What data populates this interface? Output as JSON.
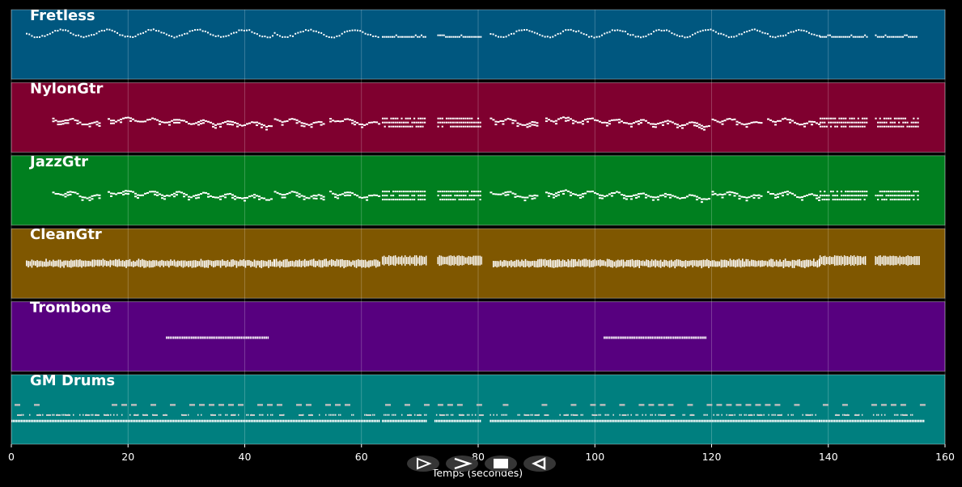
{
  "player": {
    "controls": [
      {
        "name": "play",
        "icon": "play-outline-icon"
      },
      {
        "name": "fast-forward",
        "icon": "chevron-right-icon"
      },
      {
        "name": "stop",
        "icon": "stop-square-icon"
      },
      {
        "name": "rewind",
        "icon": "rewind-outline-icon"
      }
    ]
  },
  "chart_data": {
    "type": "piano-roll",
    "xlabel": "Temps (secondes)",
    "xlim": [
      0,
      160
    ],
    "xticks": [
      0,
      20,
      40,
      60,
      80,
      100,
      120,
      140,
      160
    ],
    "grid": true,
    "tracks": [
      {
        "name": "Fretless",
        "color": "#00577f",
        "phrases": [
          {
            "start": 2.5,
            "end": 45,
            "style": "wave",
            "level": 0.33,
            "amp": 0.05
          },
          {
            "start": 45,
            "end": 63,
            "style": "wave",
            "level": 0.33,
            "amp": 0.05
          },
          {
            "start": 63.5,
            "end": 71,
            "style": "flat",
            "level": 0.38
          },
          {
            "start": 73,
            "end": 80.5,
            "style": "flat",
            "level": 0.38
          },
          {
            "start": 82,
            "end": 138.5,
            "style": "wave",
            "level": 0.33,
            "amp": 0.05
          },
          {
            "start": 138.5,
            "end": 146.5,
            "style": "flat",
            "level": 0.38
          },
          {
            "start": 148,
            "end": 155,
            "style": "flat",
            "level": 0.38
          }
        ]
      },
      {
        "name": "NylonGtr",
        "color": "#7f002f",
        "phrases": [
          {
            "start": 7,
            "end": 15,
            "style": "melody",
            "level": 0.58
          },
          {
            "start": 16.5,
            "end": 44.5,
            "style": "melody",
            "level": 0.58
          },
          {
            "start": 45,
            "end": 53.5,
            "style": "melody",
            "level": 0.58
          },
          {
            "start": 54.5,
            "end": 63,
            "style": "melody",
            "level": 0.58
          },
          {
            "start": 63.5,
            "end": 71,
            "style": "chord",
            "level": 0.55
          },
          {
            "start": 73,
            "end": 80.5,
            "style": "chord",
            "level": 0.55
          },
          {
            "start": 82,
            "end": 90,
            "style": "melody",
            "level": 0.58
          },
          {
            "start": 91.5,
            "end": 119.5,
            "style": "melody",
            "level": 0.58
          },
          {
            "start": 120,
            "end": 128.5,
            "style": "melody",
            "level": 0.58
          },
          {
            "start": 129.5,
            "end": 138.5,
            "style": "melody",
            "level": 0.58
          },
          {
            "start": 138.5,
            "end": 146.5,
            "style": "chord",
            "level": 0.55
          },
          {
            "start": 148,
            "end": 155.5,
            "style": "chord",
            "level": 0.55
          }
        ]
      },
      {
        "name": "JazzGtr",
        "color": "#007f1f",
        "phrases": [
          {
            "start": 7,
            "end": 15,
            "style": "melody",
            "level": 0.58
          },
          {
            "start": 16.5,
            "end": 44.5,
            "style": "melody",
            "level": 0.58
          },
          {
            "start": 45,
            "end": 53.5,
            "style": "melody",
            "level": 0.58
          },
          {
            "start": 54.5,
            "end": 63,
            "style": "melody",
            "level": 0.58
          },
          {
            "start": 63.5,
            "end": 71,
            "style": "chord",
            "level": 0.55
          },
          {
            "start": 73,
            "end": 80.5,
            "style": "chord",
            "level": 0.55
          },
          {
            "start": 82,
            "end": 90,
            "style": "melody",
            "level": 0.58
          },
          {
            "start": 91.5,
            "end": 119.5,
            "style": "melody",
            "level": 0.58
          },
          {
            "start": 120,
            "end": 128.5,
            "style": "melody",
            "level": 0.58
          },
          {
            "start": 129.5,
            "end": 138.5,
            "style": "melody",
            "level": 0.58
          },
          {
            "start": 138.5,
            "end": 146.5,
            "style": "chord",
            "level": 0.55
          },
          {
            "start": 148,
            "end": 155.5,
            "style": "chord",
            "level": 0.55
          }
        ]
      },
      {
        "name": "CleanGtr",
        "color": "#7f5700",
        "phrases": [
          {
            "start": 2.5,
            "end": 45,
            "style": "strum",
            "level": 0.5
          },
          {
            "start": 45,
            "end": 63,
            "style": "strum",
            "level": 0.5
          },
          {
            "start": 63.5,
            "end": 71,
            "style": "dense",
            "level": 0.47
          },
          {
            "start": 73,
            "end": 80.5,
            "style": "dense",
            "level": 0.47
          },
          {
            "start": 82.5,
            "end": 138.5,
            "style": "strum",
            "level": 0.5
          },
          {
            "start": 138.5,
            "end": 146.5,
            "style": "dense",
            "level": 0.47
          },
          {
            "start": 148,
            "end": 155.5,
            "style": "dense",
            "level": 0.47
          }
        ]
      },
      {
        "name": "Trombone",
        "color": "#57007f",
        "phrases": [
          {
            "start": 26.5,
            "end": 44,
            "style": "dots",
            "level": 0.5
          },
          {
            "start": 101.5,
            "end": 119,
            "style": "dots",
            "level": 0.5
          }
        ]
      },
      {
        "name": "GM Drums",
        "color": "#007f7f",
        "phrases": [
          {
            "start": 0,
            "end": 63,
            "style": "drums",
            "level": 0.66
          },
          {
            "start": 63.5,
            "end": 71,
            "style": "drums",
            "level": 0.66
          },
          {
            "start": 72.5,
            "end": 80.5,
            "style": "drums",
            "level": 0.66
          },
          {
            "start": 82,
            "end": 138.5,
            "style": "drums",
            "level": 0.66
          },
          {
            "start": 138.5,
            "end": 156.5,
            "style": "drums",
            "level": 0.66
          }
        ]
      }
    ]
  }
}
